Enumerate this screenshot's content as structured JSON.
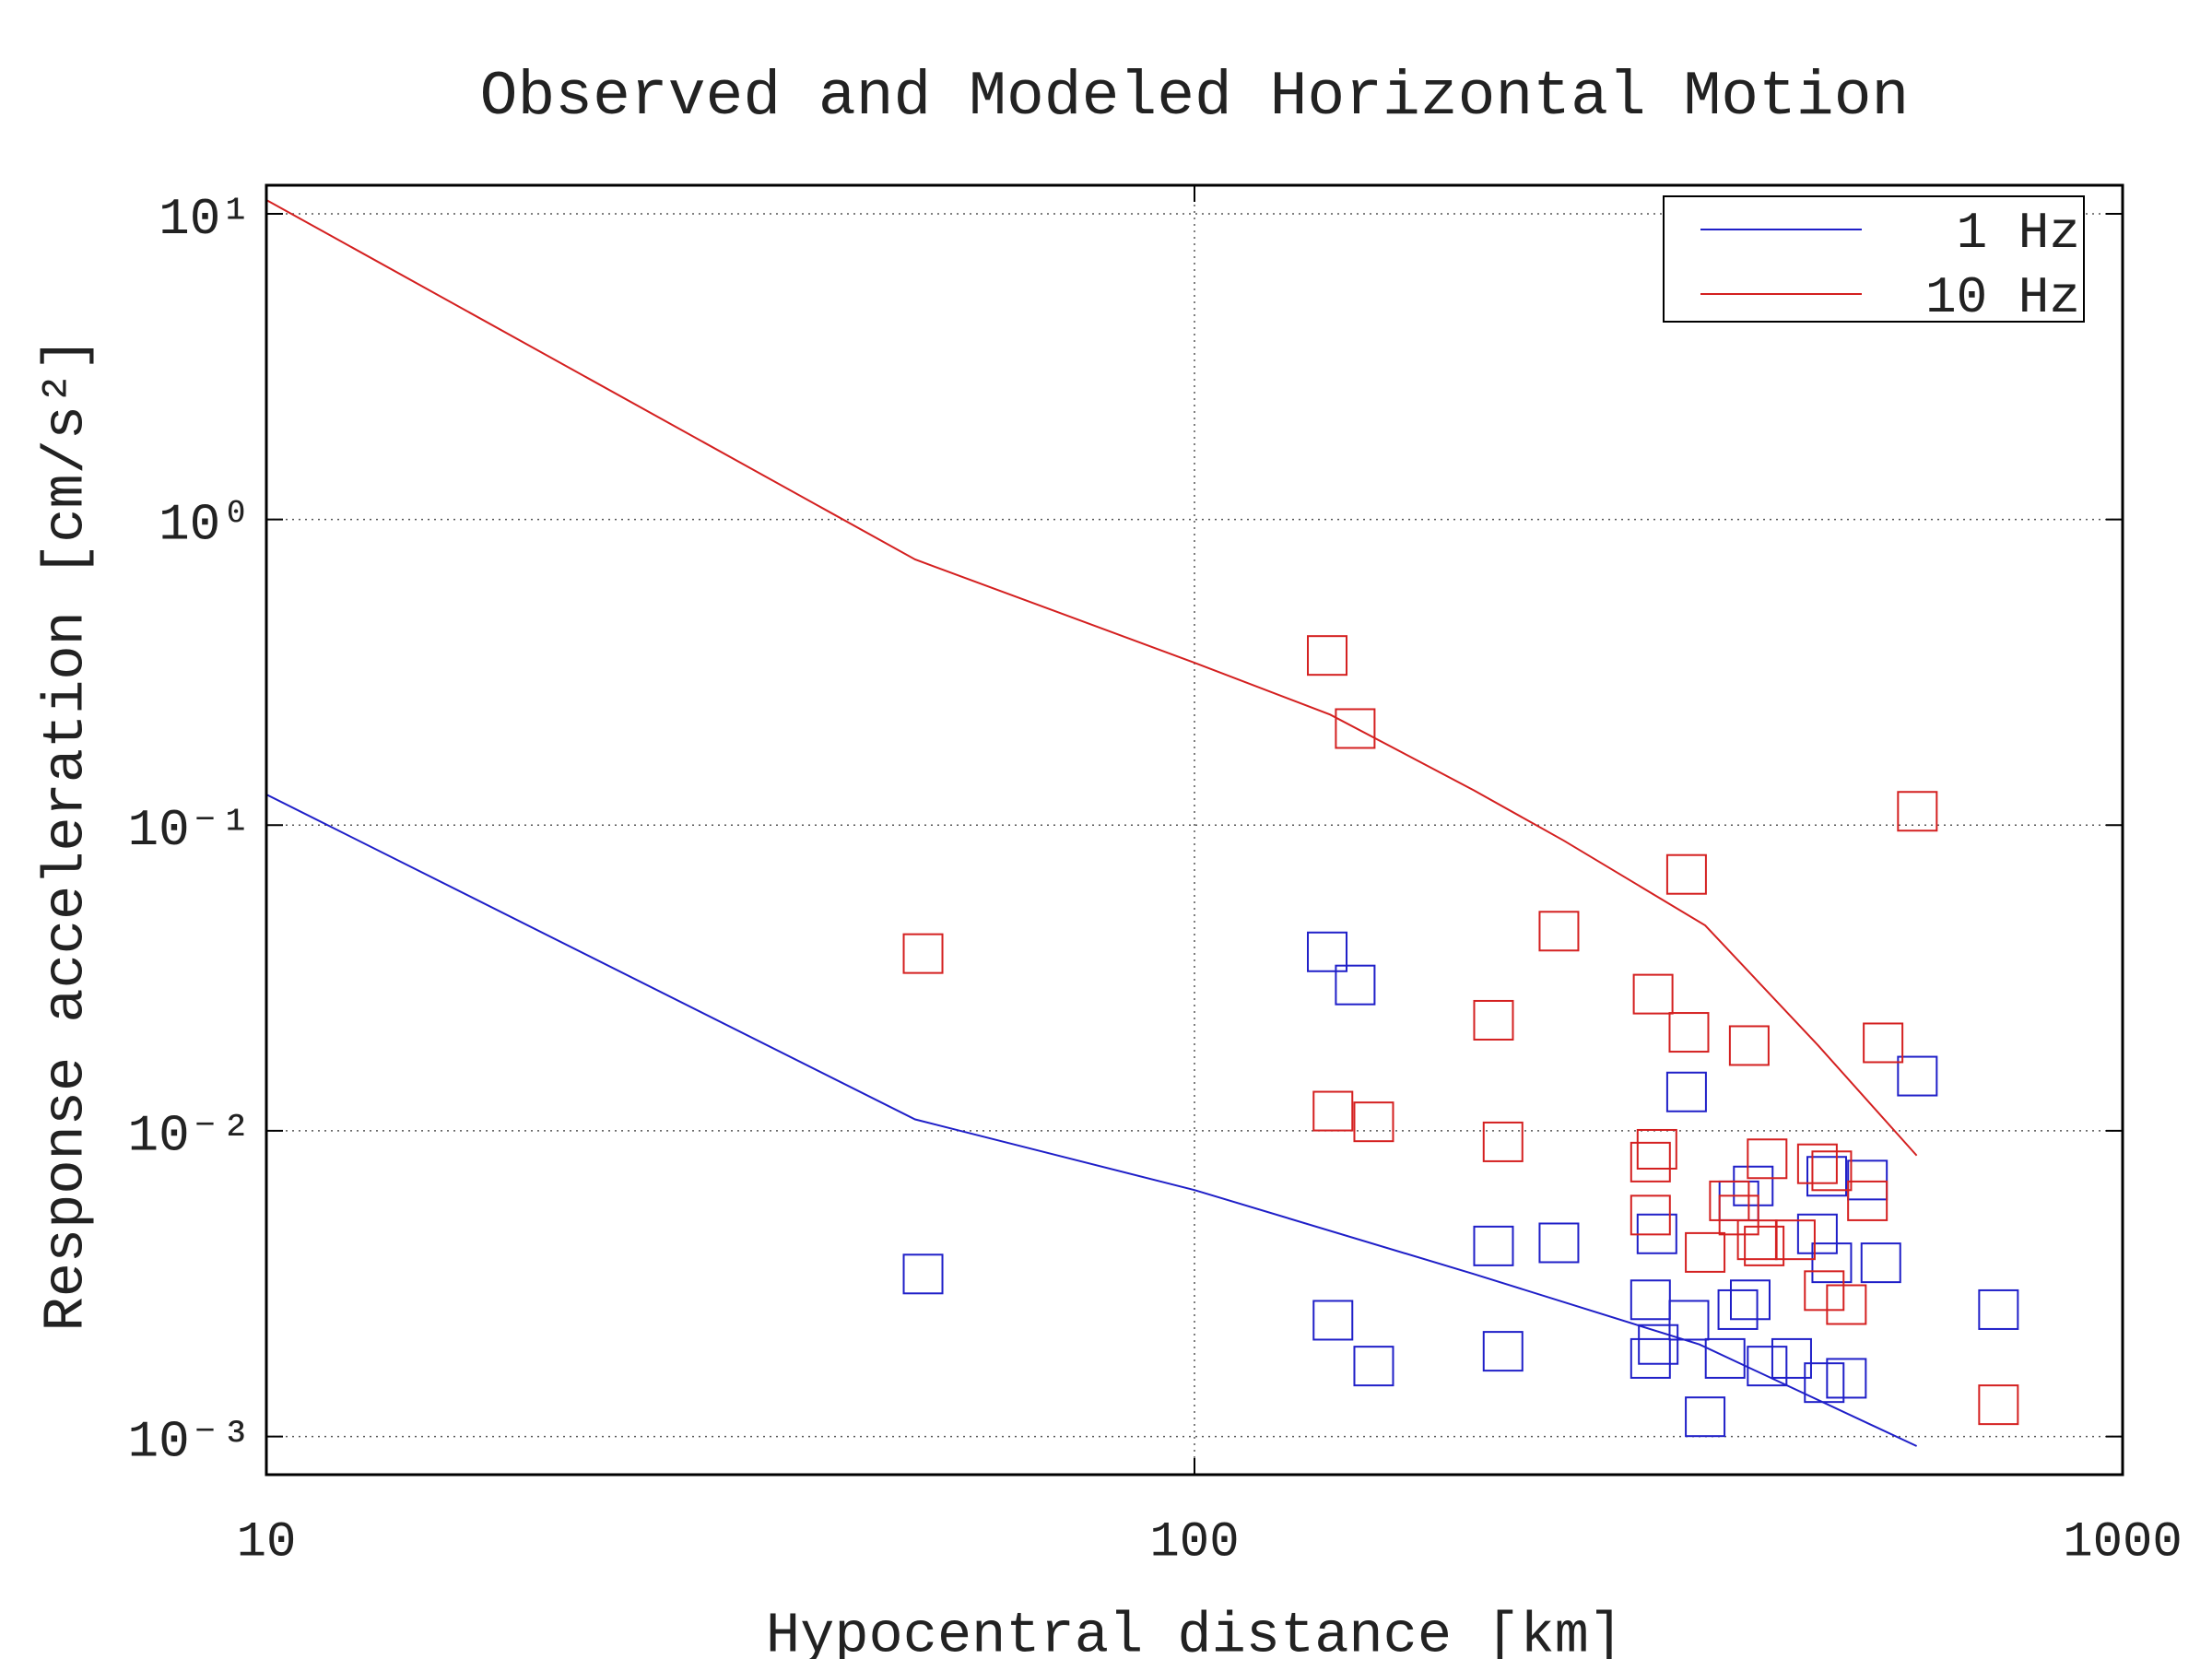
{
  "chart_data": {
    "type": "line",
    "title": "Observed and Modeled Horizontal Motion",
    "xlabel": "Hypocentral distance [km]",
    "ylabel": "Response acceleration [cm/s²]",
    "xscale": "log",
    "yscale": "log",
    "xlim": [
      10,
      1000
    ],
    "ylim": [
      0.00075,
      12.4
    ],
    "xticks": [
      10,
      100,
      1000
    ],
    "yticks": [
      {
        "value": 10,
        "label": "10¹"
      },
      {
        "value": 1,
        "label": "10⁰"
      },
      {
        "value": 0.1,
        "label": "10⁻¹"
      },
      {
        "value": 0.01,
        "label": "10⁻²"
      },
      {
        "value": 0.001,
        "label": "10⁻³"
      }
    ],
    "grid": true,
    "legend": "upper right",
    "series": [
      {
        "name": "1 Hz",
        "color": "#1f1fc8",
        "x": [
          10,
          50,
          100,
          200,
          350,
          600
        ],
        "values": [
          0.126,
          0.0109,
          0.0064,
          0.0034,
          0.002,
          0.00093
        ]
      },
      {
        "name": "10 Hz",
        "color": "#d42020",
        "x": [
          10,
          50,
          100,
          140,
          200,
          250,
          355,
          470,
          600
        ],
        "values": [
          11.1,
          0.74,
          0.34,
          0.23,
          0.13,
          0.089,
          0.047,
          0.019,
          0.0083
        ]
      }
    ],
    "markers": [
      {
        "color": "#1f1fc8",
        "x": [
          51,
          139,
          149,
          141,
          156,
          210,
          215,
          247,
          339,
          310,
          315,
          316,
          310,
          341,
          355,
          373,
          385,
          397,
          400,
          386,
          414,
          440,
          469,
          477,
          504,
          480,
          531,
          549,
          601,
          735,
          486
        ],
        "values": [
          0.0034,
          0.0385,
          0.03,
          0.0024,
          0.0017,
          0.0042,
          0.0019,
          0.0043,
          0.0134,
          0.0028,
          0.0046,
          0.002,
          0.0018,
          0.0024,
          0.00116,
          0.0018,
          0.0026,
          0.0028,
          0.0066,
          0.0059,
          0.0017,
          0.0018,
          0.0046,
          0.0015,
          0.00155,
          0.0071,
          0.0069,
          0.0037,
          0.0151,
          0.0026,
          0.0037
        ]
      },
      {
        "color": "#d42020",
        "x": [
          51,
          139,
          149,
          141,
          156,
          210,
          215,
          247,
          312,
          339,
          341,
          396,
          601,
          552,
          315,
          310,
          310,
          355,
          377,
          386,
          414,
          404,
          411,
          469,
          486,
          477,
          504,
          531,
          735,
          444
        ],
        "values": [
          0.038,
          0.359,
          0.207,
          0.0116,
          0.0107,
          0.023,
          0.0092,
          0.045,
          0.028,
          0.069,
          0.021,
          0.019,
          0.111,
          0.0194,
          0.0087,
          0.0079,
          0.0053,
          0.004,
          0.0059,
          0.0053,
          0.0081,
          0.0044,
          0.0042,
          0.0078,
          0.0074,
          0.003,
          0.0027,
          0.0059,
          0.00127,
          0.0044
        ]
      }
    ]
  }
}
